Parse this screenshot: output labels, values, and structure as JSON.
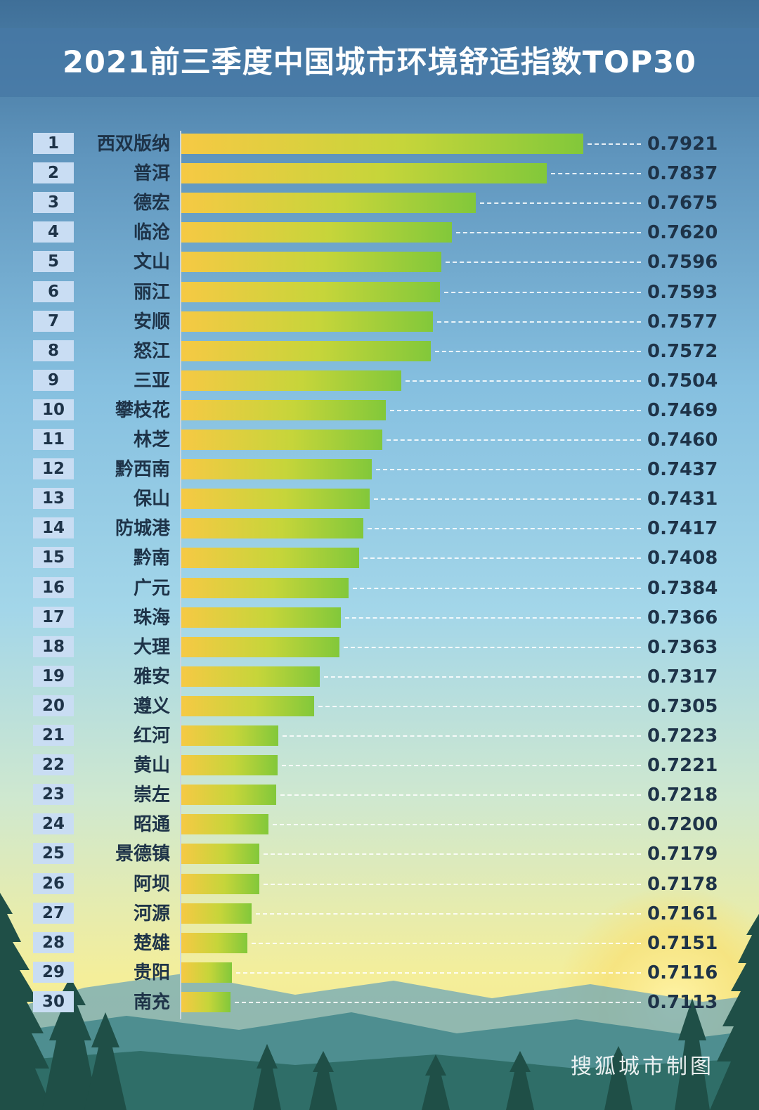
{
  "title": "2021前三季度中国城市环境舒适指数TOP30",
  "watermark": "搜狐城市制图",
  "colors": {
    "bar_start": "#f6c944",
    "bar_end": "#82c83a",
    "rank_box": "#c9ddf3",
    "text_dark": "#1e3348",
    "title_band": "#4678a5"
  },
  "chart_data": {
    "type": "bar",
    "orientation": "horizontal",
    "title": "2021前三季度中国城市环境舒适指数TOP30",
    "ranks": [
      "1",
      "2",
      "3",
      "4",
      "5",
      "6",
      "7",
      "8",
      "9",
      "10",
      "11",
      "12",
      "13",
      "14",
      "15",
      "16",
      "17",
      "18",
      "19",
      "20",
      "21",
      "22",
      "23",
      "24",
      "25",
      "26",
      "27",
      "28",
      "29",
      "30"
    ],
    "categories": [
      "西双版纳",
      "普洱",
      "德宏",
      "临沧",
      "文山",
      "丽江",
      "安顺",
      "怒江",
      "三亚",
      "攀枝花",
      "林芝",
      "黔西南",
      "保山",
      "防城港",
      "黔南",
      "广元",
      "珠海",
      "大理",
      "雅安",
      "遵义",
      "红河",
      "黄山",
      "崇左",
      "昭通",
      "景德镇",
      "阿坝",
      "河源",
      "楚雄",
      "贵阳",
      "南充"
    ],
    "values": [
      0.7921,
      0.7837,
      0.7675,
      0.762,
      0.7596,
      0.7593,
      0.7577,
      0.7572,
      0.7504,
      0.7469,
      0.746,
      0.7437,
      0.7431,
      0.7417,
      0.7408,
      0.7384,
      0.7366,
      0.7363,
      0.7317,
      0.7305,
      0.7223,
      0.7221,
      0.7218,
      0.72,
      0.7179,
      0.7178,
      0.7161,
      0.7151,
      0.7116,
      0.7113
    ],
    "value_labels": [
      "0.7921",
      "0.7837",
      "0.7675",
      "0.7620",
      "0.7596",
      "0.7593",
      "0.7577",
      "0.7572",
      "0.7504",
      "0.7469",
      "0.7460",
      "0.7437",
      "0.7431",
      "0.7417",
      "0.7408",
      "0.7384",
      "0.7366",
      "0.7363",
      "0.7317",
      "0.7305",
      "0.7223",
      "0.7221",
      "0.7218",
      "0.7200",
      "0.7179",
      "0.7178",
      "0.7161",
      "0.7151",
      "0.7116",
      "0.7113"
    ],
    "xlim": [
      0.7,
      0.7921
    ],
    "grid": false,
    "legend": "none"
  }
}
